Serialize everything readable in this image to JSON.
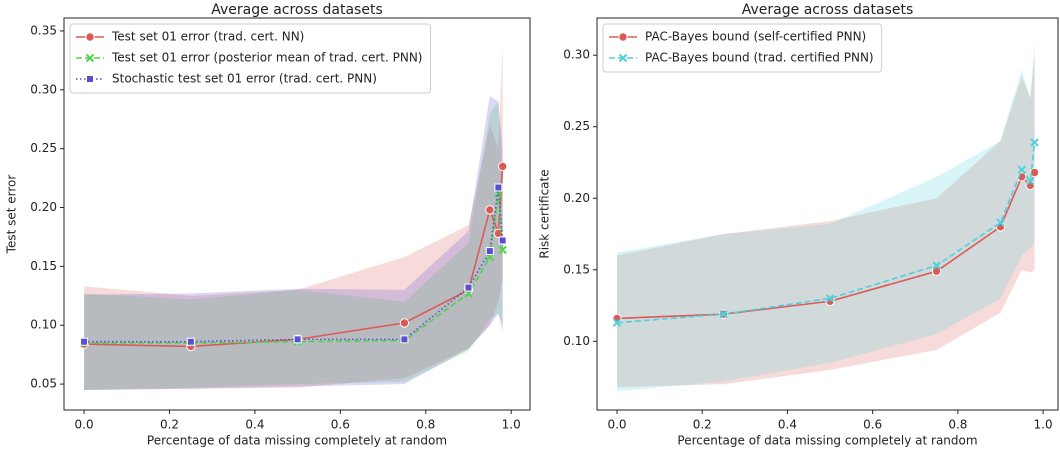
{
  "chart_data": [
    {
      "type": "line",
      "title": "Average across datasets",
      "x_label": "Percentage of data missing completely at random",
      "y_label": "Test set error",
      "x": [
        0,
        0.25,
        0.5,
        0.75,
        0.9,
        0.95,
        0.97,
        0.98
      ],
      "xlim": [
        -0.047,
        1.044
      ],
      "ylim": [
        0.028,
        0.361
      ],
      "xticks": [
        {
          "value": 0,
          "label": "0.0"
        },
        {
          "value": 0.2,
          "label": "0.2"
        },
        {
          "value": 0.4,
          "label": "0.4"
        },
        {
          "value": 0.6,
          "label": "0.6"
        },
        {
          "value": 0.8,
          "label": "0.8"
        },
        {
          "value": 1,
          "label": "1.0"
        }
      ],
      "yticks": [
        {
          "value": 0.05,
          "label": "0.05"
        },
        {
          "value": 0.1,
          "label": "0.10"
        },
        {
          "value": 0.15,
          "label": "0.15"
        },
        {
          "value": 0.2,
          "label": "0.20"
        },
        {
          "value": 0.25,
          "label": "0.25"
        },
        {
          "value": 0.3,
          "label": "0.30"
        },
        {
          "value": 0.35,
          "label": "0.35"
        }
      ],
      "legend": "upper left",
      "series": [
        {
          "name": "Test set 01 error (trad. cert. NN)",
          "color": "#dc5a55",
          "marker": "circle",
          "linestyle": "solid",
          "values": [
            0.084,
            0.082,
            0.088,
            0.102,
            0.13,
            0.198,
            0.178,
            0.235
          ],
          "lower": [
            0.045,
            0.046,
            0.047,
            0.055,
            0.08,
            0.1,
            0.12,
            0.14
          ],
          "upper": [
            0.133,
            0.125,
            0.13,
            0.158,
            0.185,
            0.27,
            0.25,
            0.34
          ]
        },
        {
          "name": "Test set 01 error (posterior mean of trad. cert. PNN)",
          "color": "#4fd44f",
          "marker": "x",
          "linestyle": "dashed",
          "values": [
            0.085,
            0.085,
            0.086,
            0.087,
            0.127,
            0.158,
            0.212,
            0.164
          ],
          "lower": [
            0.045,
            0.047,
            0.05,
            0.052,
            0.078,
            0.105,
            0.11,
            0.1
          ],
          "upper": [
            0.127,
            0.122,
            0.13,
            0.12,
            0.17,
            0.28,
            0.29,
            0.22
          ]
        },
        {
          "name": "Stochastic test set 01 error (trad. cert. PNN)",
          "color": "#5b4fd0",
          "marker": "square",
          "linestyle": "dotted",
          "values": [
            0.086,
            0.086,
            0.088,
            0.088,
            0.132,
            0.163,
            0.217,
            0.172
          ],
          "lower": [
            0.045,
            0.046,
            0.048,
            0.05,
            0.08,
            0.1,
            0.11,
            0.095
          ],
          "upper": [
            0.126,
            0.127,
            0.131,
            0.13,
            0.18,
            0.295,
            0.29,
            0.25
          ]
        }
      ]
    },
    {
      "type": "line",
      "title": "Average across datasets",
      "x_label": "Percentage of data missing completely at random",
      "y_label": "Risk certificate",
      "x": [
        0,
        0.25,
        0.5,
        0.75,
        0.9,
        0.95,
        0.97,
        0.98
      ],
      "xlim": [
        -0.047,
        1.035
      ],
      "ylim": [
        0.052,
        0.326
      ],
      "xticks": [
        {
          "value": 0,
          "label": "0.0"
        },
        {
          "value": 0.2,
          "label": "0.2"
        },
        {
          "value": 0.4,
          "label": "0.4"
        },
        {
          "value": 0.6,
          "label": "0.6"
        },
        {
          "value": 0.8,
          "label": "0.8"
        },
        {
          "value": 1,
          "label": "1.0"
        }
      ],
      "yticks": [
        {
          "value": 0.1,
          "label": "0.10"
        },
        {
          "value": 0.15,
          "label": "0.15"
        },
        {
          "value": 0.2,
          "label": "0.20"
        },
        {
          "value": 0.25,
          "label": "0.25"
        },
        {
          "value": 0.3,
          "label": "0.30"
        }
      ],
      "legend": "upper left",
      "series": [
        {
          "name": "PAC-Bayes bound (self-certified PNN)",
          "color": "#dc5a55",
          "marker": "circle",
          "linestyle": "solid",
          "values": [
            0.116,
            0.119,
            0.128,
            0.149,
            0.18,
            0.215,
            0.209,
            0.218
          ],
          "lower": [
            0.068,
            0.07,
            0.08,
            0.094,
            0.12,
            0.15,
            0.148,
            0.15
          ],
          "upper": [
            0.16,
            0.175,
            0.184,
            0.2,
            0.24,
            0.285,
            0.27,
            0.3
          ]
        },
        {
          "name": "PAC-Bayes bound (trad. certified PNN)",
          "color": "#4fd0dc",
          "marker": "x",
          "linestyle": "dashed",
          "values": [
            0.113,
            0.119,
            0.13,
            0.153,
            0.183,
            0.22,
            0.212,
            0.239
          ],
          "lower": [
            0.065,
            0.072,
            0.085,
            0.105,
            0.13,
            0.16,
            0.165,
            0.17
          ],
          "upper": [
            0.162,
            0.175,
            0.182,
            0.215,
            0.24,
            0.29,
            0.27,
            0.31
          ]
        }
      ]
    }
  ]
}
